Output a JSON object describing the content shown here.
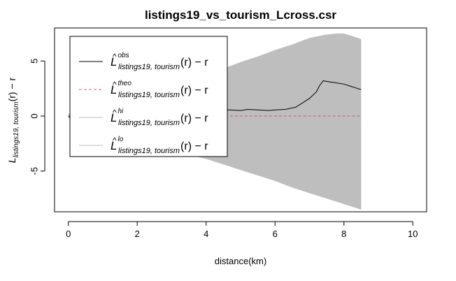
{
  "chart_data": {
    "type": "line",
    "title": "listings19_vs_tourism_Lcross.csr",
    "xlabel": "distance(km)",
    "ylabel": {
      "main": "L",
      "sub": "listings19, tourism",
      "tail": "(r) − r"
    },
    "xlim": [
      -0.4,
      10.4
    ],
    "ylim": [
      -8.7,
      8.0
    ],
    "x_ticks": [
      0,
      2,
      4,
      6,
      8,
      10
    ],
    "y_ticks": [
      -5,
      0,
      5
    ],
    "x_tick_labels": [
      "0",
      "2",
      "4",
      "6",
      "8",
      "10"
    ],
    "y_tick_labels": [
      "-5",
      "0",
      "5"
    ],
    "grid": false,
    "legend_position": "top-left",
    "legend": [
      {
        "sup": "obs",
        "sub": "listings19, tourism",
        "tail": "(r) − r",
        "style": "solid",
        "color": "#000000"
      },
      {
        "sup": "theo",
        "sub": "listings19, tourism",
        "tail": "(r) − r",
        "style": "dashed",
        "color": "#df536b"
      },
      {
        "sup": "hi",
        "sub": "listings19, tourism",
        "tail": "(r) − r",
        "style": "solid",
        "color": "#bebebe"
      },
      {
        "sup": "lo",
        "sub": "listings19, tourism",
        "tail": "(r) − r",
        "style": "solid",
        "color": "#bebebe"
      }
    ],
    "envelope_color": "#bebebe",
    "envelope": {
      "x": [
        0,
        0.5,
        1.0,
        1.5,
        2.0,
        2.5,
        3.0,
        3.5,
        4.0,
        4.5,
        5.0,
        5.5,
        6.0,
        6.5,
        7.0,
        7.5,
        7.8,
        8.0,
        8.2,
        8.5
      ],
      "hi": [
        0.2,
        0.6,
        1.0,
        1.5,
        2.0,
        2.5,
        3.0,
        3.4,
        3.8,
        4.3,
        4.9,
        5.4,
        6.0,
        6.5,
        7.1,
        7.4,
        7.5,
        7.5,
        7.3,
        7.0
      ],
      "lo": [
        -0.2,
        -0.6,
        -1.1,
        -1.6,
        -2.0,
        -2.5,
        -3.1,
        -3.5,
        -3.9,
        -4.4,
        -4.9,
        -5.4,
        -5.9,
        -6.5,
        -7.0,
        -7.5,
        -7.8,
        -8.0,
        -8.2,
        -8.5
      ]
    },
    "series": [
      {
        "name": "obs",
        "color": "#000000",
        "style": "solid",
        "x": [
          0,
          0.3,
          0.5,
          0.8,
          1.0,
          1.3,
          1.6,
          2.0,
          2.5,
          3.0,
          3.3,
          3.6,
          3.8,
          4.0,
          4.2,
          4.3,
          4.5,
          4.7,
          5.0,
          5.2,
          5.5,
          5.8,
          6.0,
          6.3,
          6.6,
          6.8,
          7.0,
          7.2,
          7.3,
          7.4,
          7.6,
          7.8,
          8.0,
          8.2,
          8.5
        ],
        "y": [
          -0.05,
          -0.05,
          -0.1,
          -0.15,
          -0.2,
          -0.35,
          -0.55,
          -0.75,
          -0.9,
          -0.95,
          -0.95,
          -0.85,
          -0.6,
          -0.35,
          -0.1,
          0.45,
          0.55,
          0.55,
          0.5,
          0.6,
          0.55,
          0.5,
          0.55,
          0.6,
          0.8,
          1.2,
          1.6,
          2.2,
          2.8,
          3.2,
          3.1,
          3.0,
          2.9,
          2.7,
          2.4
        ]
      },
      {
        "name": "theo",
        "color": "#df536b",
        "style": "dashed",
        "x": [
          0,
          8.5
        ],
        "y": [
          0,
          0
        ]
      }
    ]
  }
}
